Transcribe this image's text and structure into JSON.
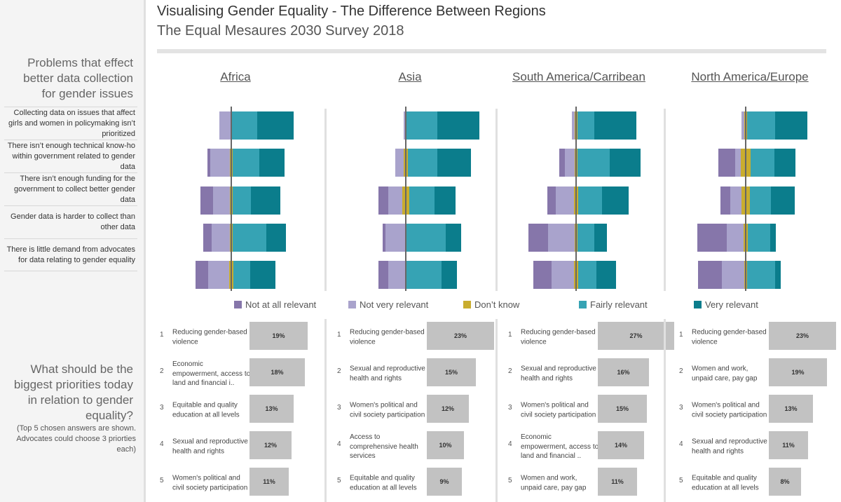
{
  "header": {
    "title": "Visualising Gender Equality - The Difference Between Regions",
    "subtitle": "The Equal Mesaures 2030 Survey 2018"
  },
  "sidebar": {
    "problems_heading": "Problems that effect better data collection for gender issues",
    "problems_heading_lines": [
      "Problems that effect",
      "better data collection",
      "for gender issues"
    ],
    "priorities_heading_lines": [
      "What should be the",
      "biggest priorities today",
      "in relation to gender",
      "equality?"
    ],
    "priorities_note": "(Top 5 chosen answers are shown. Advocates could choose 3 priorties each)"
  },
  "questions": [
    "Collecting data on issues that affect girls and women in policymaking isn’t prioritized",
    "There isn’t enough technical know-ho within government related to gender data",
    "There isn’t enough funding for the government to collect better gender data",
    "Gender data is harder to collect than other data",
    "There is little demand from advocates for data relating to gender equality"
  ],
  "legend": [
    {
      "label": "Not at all relevant",
      "color": "#8676aa"
    },
    {
      "label": "Not very relevant",
      "color": "#a9a3cc"
    },
    {
      "label": "Don’t know",
      "color": "#c9ad2e"
    },
    {
      "label": "Fairly relevant",
      "color": "#36a3b4"
    },
    {
      "label": "Very relevant",
      "color": "#0b7d8c"
    }
  ],
  "chart_data": {
    "type": "bar",
    "subtype": "diverging-stacked-horizontal",
    "categories_order": [
      "Not at all relevant",
      "Not very relevant",
      "Don’t know",
      "Fairly relevant",
      "Very relevant"
    ],
    "regions": [
      {
        "name": "Africa",
        "rows": [
          [
            0,
            8,
            1,
            18,
            26
          ],
          [
            2,
            14,
            2,
            19,
            18
          ],
          [
            9,
            12,
            2,
            13,
            21
          ],
          [
            6,
            13,
            2,
            24,
            14
          ],
          [
            9,
            15,
            3,
            12,
            18
          ]
        ]
      },
      {
        "name": "Asia",
        "rows": [
          [
            0,
            1,
            1,
            22,
            30
          ],
          [
            0,
            6,
            3,
            21,
            24
          ],
          [
            7,
            10,
            5,
            18,
            15
          ],
          [
            2,
            14,
            1,
            28,
            11
          ],
          [
            7,
            12,
            1,
            25,
            11
          ]
        ]
      },
      {
        "name": "South America/Carribean",
        "rows": [
          [
            0,
            2,
            2,
            12,
            30
          ],
          [
            4,
            7,
            2,
            23,
            22
          ],
          [
            6,
            13,
            3,
            17,
            19
          ],
          [
            14,
            19,
            2,
            12,
            9
          ],
          [
            13,
            16,
            3,
            13,
            14
          ]
        ]
      },
      {
        "name": "North America/Europe",
        "rows": [
          [
            0,
            2,
            2,
            20,
            23
          ],
          [
            12,
            4,
            7,
            17,
            15
          ],
          [
            7,
            8,
            6,
            15,
            17
          ],
          [
            21,
            12,
            3,
            16,
            4
          ],
          [
            17,
            16,
            2,
            20,
            4
          ]
        ]
      }
    ]
  },
  "priorities": [
    {
      "region": "Africa",
      "items": [
        {
          "rank": "1",
          "label": "Reducing gender-based violence",
          "pct": 19,
          "pct_label": "19%"
        },
        {
          "rank": "2",
          "label": "Economic empowerment, access to land and financial i..",
          "pct": 18,
          "pct_label": "18%"
        },
        {
          "rank": "3",
          "label": "Equitable and quality education at all levels",
          "pct": 13,
          "pct_label": "13%"
        },
        {
          "rank": "4",
          "label": "Sexual and reproductive health and rights",
          "pct": 12,
          "pct_label": "12%"
        },
        {
          "rank": "5",
          "label": "Women's political and civil society participation",
          "pct": 11,
          "pct_label": "11%"
        }
      ]
    },
    {
      "region": "Asia",
      "items": [
        {
          "rank": "1",
          "label": "Reducing gender-based violence",
          "pct": 23,
          "pct_label": "23%"
        },
        {
          "rank": "2",
          "label": "Sexual and reproductive health and rights",
          "pct": 15,
          "pct_label": "15%"
        },
        {
          "rank": "3",
          "label": "Women's political and civil society participation",
          "pct": 12,
          "pct_label": "12%"
        },
        {
          "rank": "4",
          "label": "Access to comprehensive health services",
          "pct": 10,
          "pct_label": "10%"
        },
        {
          "rank": "5",
          "label": "Equitable and quality education at all levels",
          "pct": 9,
          "pct_label": "9%"
        }
      ]
    },
    {
      "region": "South America/Carribean",
      "items": [
        {
          "rank": "1",
          "label": "Reducing gender-based violence",
          "pct": 27,
          "pct_label": "27%"
        },
        {
          "rank": "2",
          "label": "Sexual and reproductive health and rights",
          "pct": 16,
          "pct_label": "16%"
        },
        {
          "rank": "3",
          "label": "Women's political and civil society participation",
          "pct": 15,
          "pct_label": "15%"
        },
        {
          "rank": "4",
          "label": "Economic empowerment, access to land and financial ..",
          "pct": 14,
          "pct_label": "14%"
        },
        {
          "rank": "5",
          "label": "Women and work, unpaid care, pay gap",
          "pct": 11,
          "pct_label": "11%"
        }
      ]
    },
    {
      "region": "North America/Europe",
      "items": [
        {
          "rank": "1",
          "label": "Reducing gender-based violence",
          "pct": 23,
          "pct_label": "23%"
        },
        {
          "rank": "2",
          "label": "Women and work, unpaid care, pay gap",
          "pct": 19,
          "pct_label": "19%"
        },
        {
          "rank": "3",
          "label": "Women's political and civil society participation",
          "pct": 13,
          "pct_label": "13%"
        },
        {
          "rank": "4",
          "label": "Sexual and reproductive health and rights",
          "pct": 11,
          "pct_label": "11%"
        },
        {
          "rank": "5",
          "label": "Equitable and quality education at all levels",
          "pct": 8,
          "pct_label": "8%"
        }
      ]
    }
  ]
}
